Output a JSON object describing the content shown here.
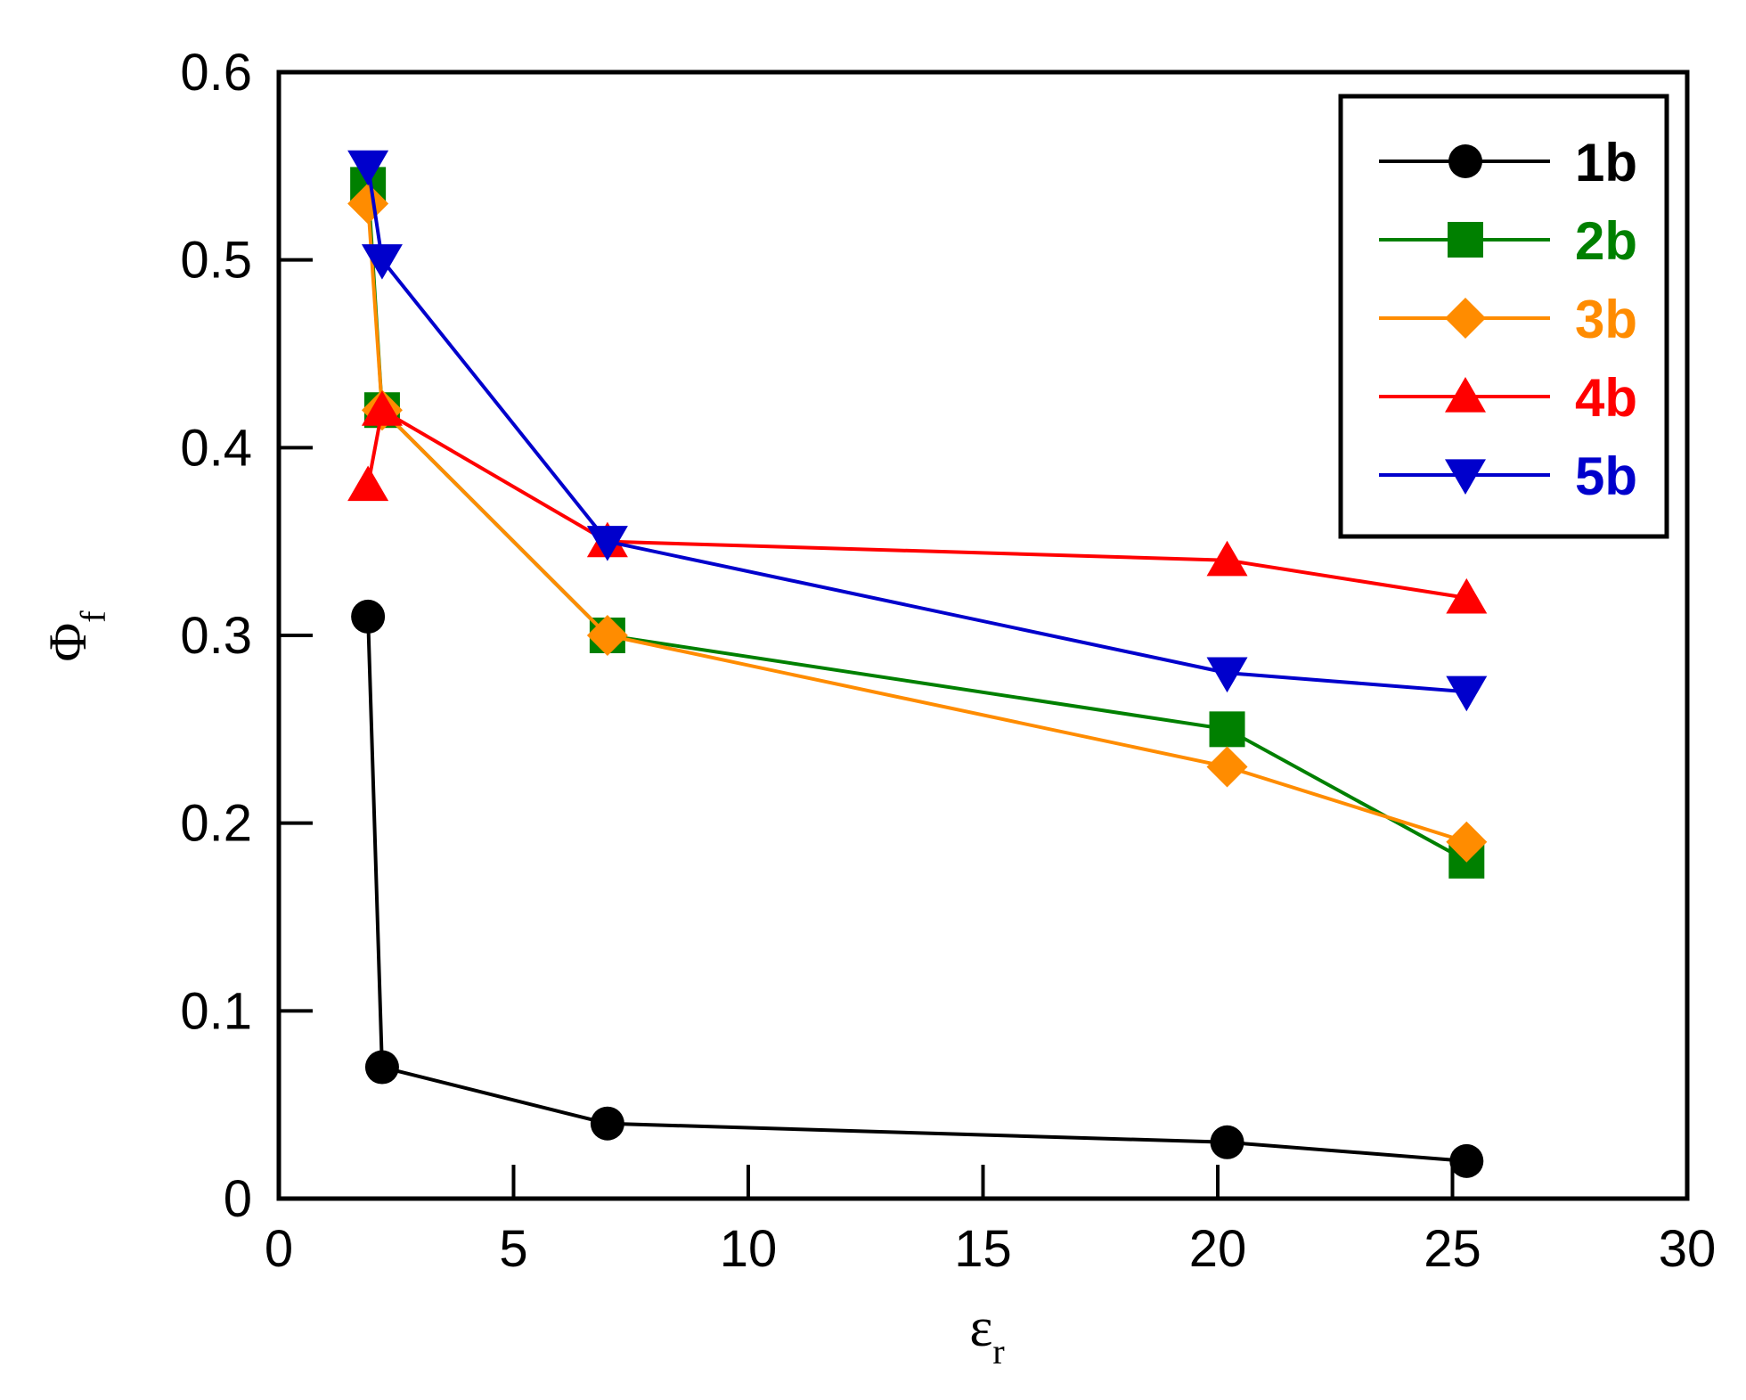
{
  "chart_data": {
    "type": "line",
    "title": "",
    "xlabel": {
      "main": "ε",
      "sub": "r"
    },
    "ylabel": {
      "main": "Φ",
      "sub": "f"
    },
    "xlim": [
      0,
      30
    ],
    "ylim": [
      0,
      0.6
    ],
    "xticks": [
      0,
      5,
      10,
      15,
      20,
      25,
      30
    ],
    "yticks": [
      0,
      0.1,
      0.2,
      0.3,
      0.4,
      0.5,
      0.6
    ],
    "xtick_labels": [
      "0",
      "5",
      "10",
      "15",
      "20",
      "25",
      "30"
    ],
    "ytick_labels": [
      "0",
      "0.1",
      "0.2",
      "0.3",
      "0.4",
      "0.5",
      "0.6"
    ],
    "grid": false,
    "legend_position": "top-right",
    "series": [
      {
        "name": "1b",
        "color": "#000000",
        "marker": "circle",
        "x": [
          1.9,
          2.2,
          7.0,
          20.2,
          25.3
        ],
        "y": [
          0.31,
          0.07,
          0.04,
          0.03,
          0.02
        ]
      },
      {
        "name": "2b",
        "color": "#008000",
        "marker": "square",
        "x": [
          1.9,
          2.2,
          7.0,
          20.2,
          25.3
        ],
        "y": [
          0.54,
          0.42,
          0.3,
          0.25,
          0.18
        ]
      },
      {
        "name": "3b",
        "color": "#ff8c00",
        "marker": "diamond",
        "x": [
          1.9,
          2.2,
          7.0,
          20.2,
          25.3
        ],
        "y": [
          0.53,
          0.42,
          0.3,
          0.23,
          0.19
        ]
      },
      {
        "name": "4b",
        "color": "#ff0000",
        "marker": "triangle-up",
        "x": [
          1.9,
          2.2,
          7.0,
          20.2,
          25.3
        ],
        "y": [
          0.38,
          0.42,
          0.35,
          0.34,
          0.32
        ]
      },
      {
        "name": "5b",
        "color": "#0000cc",
        "marker": "triangle-down",
        "x": [
          1.9,
          2.2,
          7.0,
          20.2,
          25.3
        ],
        "y": [
          0.55,
          0.5,
          0.35,
          0.28,
          0.27
        ]
      }
    ]
  }
}
